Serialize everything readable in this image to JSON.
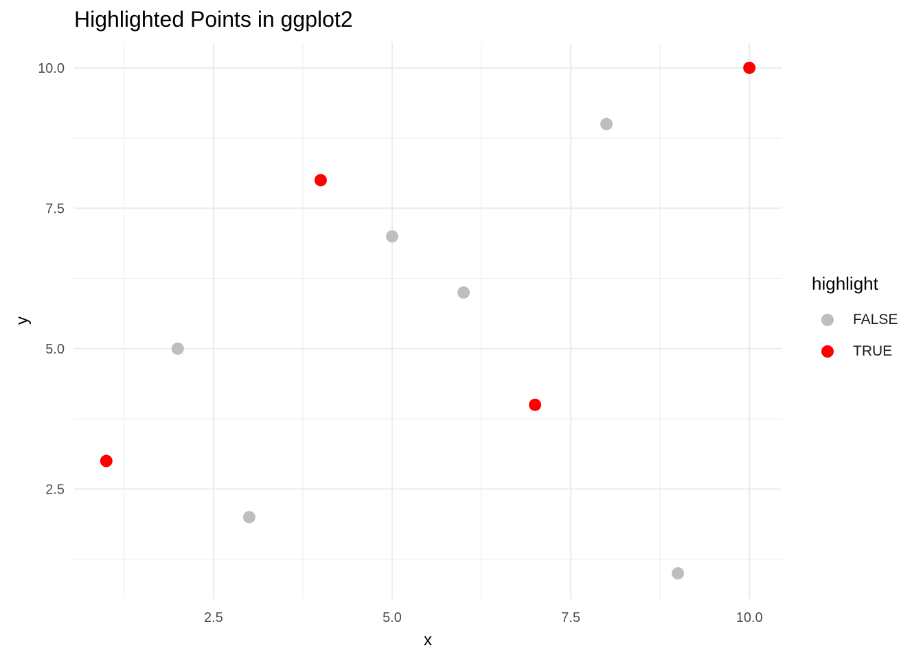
{
  "chart_data": {
    "type": "scatter",
    "title": "Highlighted Points in ggplot2",
    "xlabel": "x",
    "ylabel": "y",
    "xlim": [
      0.55,
      10.45
    ],
    "ylim": [
      0.55,
      10.45
    ],
    "x_ticks": [
      2.5,
      5.0,
      7.5,
      10.0
    ],
    "y_ticks": [
      2.5,
      5.0,
      7.5,
      10.0
    ],
    "x_tick_labels": [
      "2.5",
      "5.0",
      "7.5",
      "10.0"
    ],
    "y_tick_labels": [
      "2.5",
      "5.0",
      "7.5",
      "10.0"
    ],
    "grid": true,
    "legend": {
      "title": "highlight",
      "position": "right"
    },
    "series": [
      {
        "name": "FALSE",
        "color": "#bebebe",
        "points": [
          [
            2,
            5
          ],
          [
            3,
            2
          ],
          [
            5,
            7
          ],
          [
            6,
            6
          ],
          [
            8,
            9
          ],
          [
            9,
            1
          ]
        ]
      },
      {
        "name": "TRUE",
        "color": "#ff0000",
        "points": [
          [
            1,
            3
          ],
          [
            4,
            8
          ],
          [
            7,
            4
          ],
          [
            10,
            10
          ]
        ]
      }
    ]
  }
}
